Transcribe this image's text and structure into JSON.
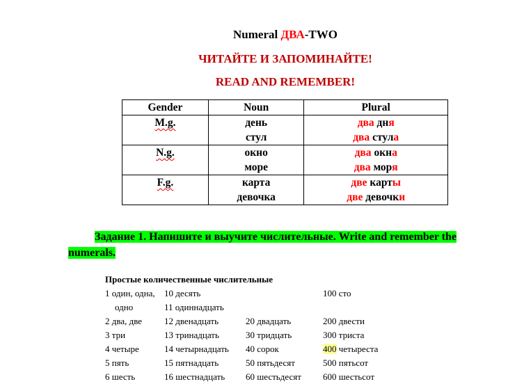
{
  "header": {
    "title_a": "Numeral ",
    "title_b": "ДВА",
    "title_c": "-TWO",
    "line2": "ЧИТАЙТЕ И ЗАПОМИНАЙТЕ!",
    "line3": "READ AND REMEMBER!"
  },
  "table": {
    "headers": [
      "Gender",
      "Noun",
      "Plural"
    ],
    "rows": [
      {
        "gender": "M.g.",
        "nouns": [
          "день",
          "стул"
        ],
        "plural": [
          [
            [
              "два",
              1
            ],
            [
              " дн",
              0
            ],
            [
              "я",
              1
            ]
          ],
          [
            [
              "два",
              1
            ],
            [
              " стул",
              0
            ],
            [
              "а",
              1
            ]
          ]
        ]
      },
      {
        "gender": "N.g.",
        "nouns": [
          "окно",
          "море"
        ],
        "plural": [
          [
            [
              "два",
              1
            ],
            [
              " окн",
              0
            ],
            [
              "а",
              1
            ]
          ],
          [
            [
              "два",
              1
            ],
            [
              " мор",
              0
            ],
            [
              "я",
              1
            ]
          ]
        ]
      },
      {
        "gender": "F.g.",
        "nouns": [
          "карта",
          "девочка"
        ],
        "plural": [
          [
            [
              "две",
              1
            ],
            [
              " карт",
              0
            ],
            [
              "ы",
              1
            ]
          ],
          [
            [
              "две",
              1
            ],
            [
              " девочк",
              0
            ],
            [
              "и",
              1
            ]
          ]
        ]
      }
    ]
  },
  "task": "Задание 1.  Напишите и выучите числительные. Write and remember the numerals.",
  "numerals": {
    "heading": "Простые количественные числительные",
    "rows": [
      [
        "1 один, одна,",
        "10 десять",
        "",
        "100 сто"
      ],
      [
        "    одно",
        "11 одиннадцать",
        "",
        ""
      ],
      [
        "2 два, две",
        "12 двенадцать",
        "20 двадцать",
        "200 двести"
      ],
      [
        "3 три",
        "13 тринадцать",
        "30 тридцать",
        "300 триста"
      ],
      [
        "4 четыре",
        "14 четырнадцать",
        "40 сорок",
        "400| четыреста"
      ],
      [
        "5 пять",
        "15 пятнадцать",
        "50 пятьдесят",
        "500 пятьсот"
      ],
      [
        "6 шесть",
        "16 шестнадцать",
        "60 шестьдесят",
        "600 шестьсот"
      ]
    ]
  },
  "colors": {
    "red": "#ff0000",
    "dark_red": "#c00000",
    "highlight_green": "#00ff00",
    "highlight_yellow": "#ffff99"
  }
}
